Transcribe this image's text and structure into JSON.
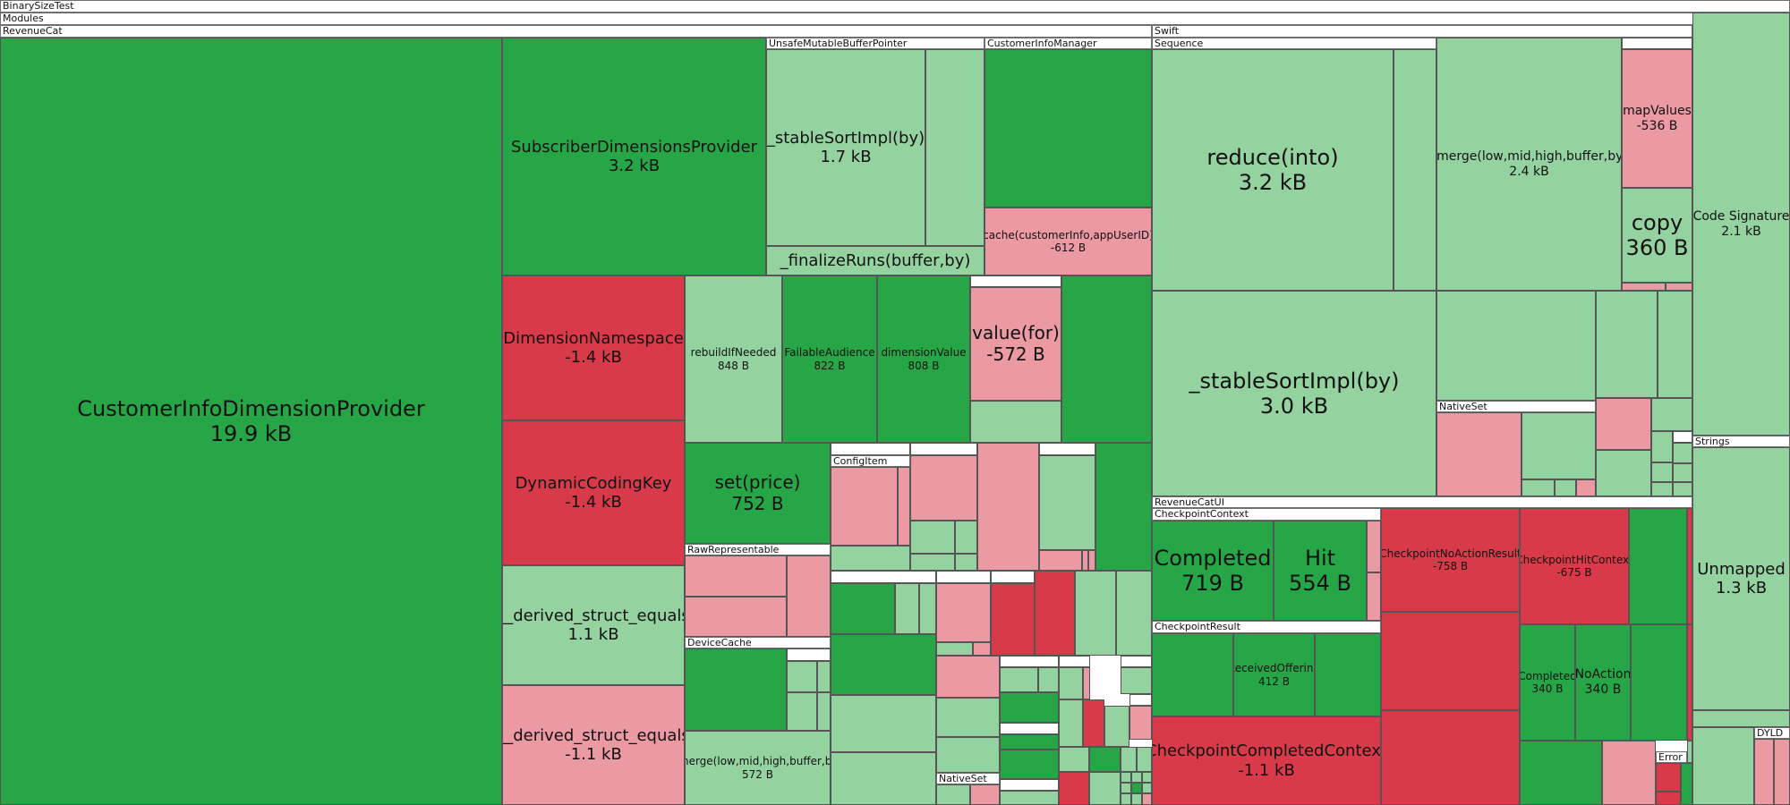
{
  "labels": {
    "root": "BinarySizeTest",
    "modules": "Modules",
    "revenuecat": "RevenueCat",
    "swift": "Swift",
    "sequence": "Sequence",
    "unsafe_buffer": "UnsafeMutableBufferPointer",
    "customer_info_manager": "CustomerInfoManager",
    "raw_representable": "RawRepresentable",
    "device_cache": "DeviceCache",
    "config_item": "ConfigItem",
    "native_set_1": "NativeSet",
    "native_set_2": "NativeSet",
    "strings": "Strings",
    "revenuecat_ui": "RevenueCatUI",
    "checkpoint_context": "CheckpointContext",
    "checkpoint_result": "CheckpointResult",
    "dyld": "DYLD",
    "error": "Error"
  },
  "cells": {
    "customer_info_dimension_provider": {
      "name": "CustomerInfoDimensionProvider",
      "size": "19.9 kB"
    },
    "subscriber_dimensions_provider": {
      "name": "SubscriberDimensionsProvider",
      "size": "3.2 kB"
    },
    "stable_sort_impl_unsafe": {
      "name": "_stableSortImpl(by)",
      "size": "1.7 kB"
    },
    "finalize_runs": {
      "name": "_finalizeRuns(buffer,by)"
    },
    "cache_customer_info": {
      "name": "cache(customerInfo,appUserID)",
      "size": "-612 B"
    },
    "dimension_namespace": {
      "name": "DimensionNamespace",
      "size": "-1.4 kB"
    },
    "rebuild_if_needed": {
      "name": "rebuildIfNeeded",
      "size": "848 B"
    },
    "failable_audience": {
      "name": "FailableAudience",
      "size": "822 B"
    },
    "dimension_value": {
      "name": "dimensionValue",
      "size": "808 B"
    },
    "value_for": {
      "name": "value(for)",
      "size": "-572 B"
    },
    "dynamic_coding_key": {
      "name": "DynamicCodingKey",
      "size": "-1.4 kB"
    },
    "set_price": {
      "name": "set(price)",
      "size": "752 B"
    },
    "derived_struct_equals_pos": {
      "name": "__derived_struct_equals",
      "size": "1.1 kB"
    },
    "derived_struct_equals_neg": {
      "name": "__derived_struct_equals",
      "size": "-1.1 kB"
    },
    "merge_small": {
      "name": "_merge(low,mid,high,buffer,by)",
      "size": "572 B"
    },
    "reduce_into": {
      "name": "reduce(into)",
      "size": "3.2 kB"
    },
    "merge_big": {
      "name": "_merge(low,mid,high,buffer,by)",
      "size": "2.4 kB"
    },
    "map_values": {
      "name": "mapValues",
      "size": "-536 B"
    },
    "copy": {
      "name": "copy",
      "size": "360 B"
    },
    "stable_sort_impl_seq": {
      "name": "_stableSortImpl(by)",
      "size": "3.0 kB"
    },
    "code_signature": {
      "name": "Code Signature",
      "size": "2.1 kB"
    },
    "unmapped": {
      "name": "Unmapped",
      "size": "1.3 kB"
    },
    "completed_context": {
      "name": "Completed",
      "size": "719 B"
    },
    "hit_context": {
      "name": "Hit",
      "size": "554 B"
    },
    "checkpoint_no_action_result": {
      "name": "CheckpointNoActionResult",
      "size": "-758 B"
    },
    "checkpoint_hit_context": {
      "name": "CheckpointHitContext",
      "size": "-675 B"
    },
    "received_offering": {
      "name": "ReceivedOffering",
      "size": "412 B"
    },
    "completed_result": {
      "name": "Completed",
      "size": "340 B"
    },
    "no_action_result": {
      "name": "NoAction",
      "size": "340 B"
    },
    "checkpoint_completed_context": {
      "name": "CheckpointCompletedContext",
      "size": "-1.1 kB"
    }
  }
}
